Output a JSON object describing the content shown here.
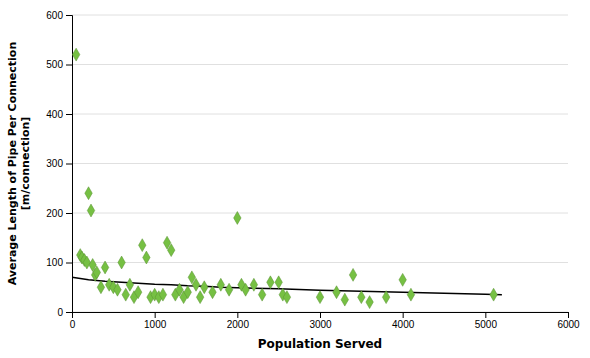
{
  "chart_data": {
    "type": "scatter",
    "x_label": "Population Served",
    "y_label": "Average Length of Pipe Per Connection\n[m/connection]",
    "series": [
      {
        "type": "scatter",
        "color": "#76c043",
        "marker": "diamond",
        "x": [
          50,
          100,
          120,
          150,
          180,
          200,
          230,
          250,
          280,
          300,
          350,
          400,
          450,
          500,
          550,
          600,
          650,
          700,
          750,
          800,
          850,
          900,
          950,
          1000,
          1050,
          1100,
          1150,
          1200,
          1250,
          1300,
          1350,
          1400,
          1450,
          1500,
          1550,
          1600,
          1700,
          1800,
          1900,
          2000,
          2050,
          2100,
          2200,
          2300,
          2400,
          2500,
          2550,
          2600,
          3000,
          3200,
          3300,
          3400,
          3500,
          3600,
          3800,
          4000,
          4100,
          5100
        ],
        "values": [
          520,
          115,
          110,
          105,
          100,
          240,
          205,
          95,
          75,
          80,
          50,
          90,
          55,
          50,
          45,
          100,
          35,
          55,
          30,
          40,
          135,
          110,
          30,
          35,
          30,
          35,
          140,
          125,
          35,
          45,
          30,
          40,
          70,
          55,
          30,
          50,
          40,
          55,
          45,
          190,
          55,
          45,
          55,
          35,
          60,
          60,
          35,
          30,
          30,
          40,
          25,
          75,
          30,
          20,
          30,
          65,
          35,
          35
        ]
      },
      {
        "type": "line",
        "color": "#000000",
        "line_style": "solid",
        "x": [
          0,
          200,
          400,
          600,
          800,
          1000,
          1200,
          1400,
          1600,
          1800,
          2000,
          2500,
          3000,
          3500,
          4000,
          5000,
          5200
        ],
        "values": [
          70,
          65,
          62,
          60,
          58,
          56,
          55,
          53,
          52,
          50,
          49,
          47,
          44,
          42,
          40,
          36,
          35
        ]
      }
    ],
    "xlim": [
      0,
      6000
    ],
    "ylim": [
      0,
      600
    ],
    "xticks": [
      0,
      1000,
      2000,
      3000,
      4000,
      5000,
      6000
    ],
    "yticks": [
      0,
      100,
      200,
      300,
      400,
      500,
      600
    ],
    "grid": true
  }
}
